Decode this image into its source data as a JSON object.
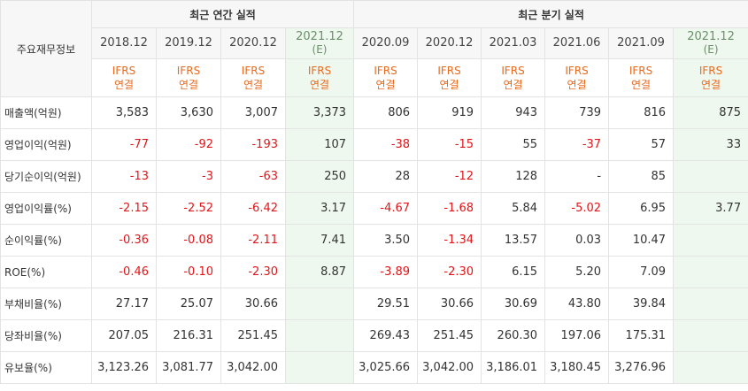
{
  "headers": {
    "row_title": "주요재무정보",
    "annual_group": "최근 연간 실적",
    "quarter_group": "최근 분기 실적"
  },
  "periods": [
    {
      "label": "2018.12",
      "est": "",
      "ifrs": "IFRS",
      "basis": "연결"
    },
    {
      "label": "2019.12",
      "est": "",
      "ifrs": "IFRS",
      "basis": "연결"
    },
    {
      "label": "2020.12",
      "est": "",
      "ifrs": "IFRS",
      "basis": "연결"
    },
    {
      "label": "2021.12",
      "est": "(E)",
      "ifrs": "IFRS",
      "basis": "연결"
    },
    {
      "label": "2020.09",
      "est": "",
      "ifrs": "IFRS",
      "basis": "연결"
    },
    {
      "label": "2020.12",
      "est": "",
      "ifrs": "IFRS",
      "basis": "연결"
    },
    {
      "label": "2021.03",
      "est": "",
      "ifrs": "IFRS",
      "basis": "연결"
    },
    {
      "label": "2021.06",
      "est": "",
      "ifrs": "IFRS",
      "basis": "연결"
    },
    {
      "label": "2021.09",
      "est": "",
      "ifrs": "IFRS",
      "basis": "연결"
    },
    {
      "label": "2021.12",
      "est": "(E)",
      "ifrs": "IFRS",
      "basis": "연결"
    }
  ],
  "rows": [
    {
      "label": "매출액(억원)",
      "values": [
        "3,583",
        "3,630",
        "3,007",
        "3,373",
        "806",
        "919",
        "943",
        "739",
        "816",
        "875"
      ]
    },
    {
      "label": "영업이익(억원)",
      "values": [
        "-77",
        "-92",
        "-193",
        "107",
        "-38",
        "-15",
        "55",
        "-37",
        "57",
        "33"
      ]
    },
    {
      "label": "당기순이익(억원)",
      "values": [
        "-13",
        "-3",
        "-63",
        "250",
        "28",
        "-12",
        "128",
        "-",
        "85",
        ""
      ]
    },
    {
      "label": "영업이익률(%)",
      "values": [
        "-2.15",
        "-2.52",
        "-6.42",
        "3.17",
        "-4.67",
        "-1.68",
        "5.84",
        "-5.02",
        "6.95",
        "3.77"
      ]
    },
    {
      "label": "순이익률(%)",
      "values": [
        "-0.36",
        "-0.08",
        "-2.11",
        "7.41",
        "3.50",
        "-1.34",
        "13.57",
        "0.03",
        "10.47",
        ""
      ]
    },
    {
      "label": "ROE(%)",
      "values": [
        "-0.46",
        "-0.10",
        "-2.30",
        "8.87",
        "-3.89",
        "-2.30",
        "6.15",
        "5.20",
        "7.09",
        ""
      ]
    },
    {
      "label": "부채비율(%)",
      "values": [
        "27.17",
        "25.07",
        "30.66",
        "",
        "29.51",
        "30.66",
        "30.69",
        "43.80",
        "39.84",
        ""
      ]
    },
    {
      "label": "당좌비율(%)",
      "values": [
        "207.05",
        "216.31",
        "251.45",
        "",
        "269.43",
        "251.45",
        "260.30",
        "197.06",
        "175.31",
        ""
      ]
    },
    {
      "label": "유보율(%)",
      "values": [
        "3,123.26",
        "3,081.77",
        "3,042.00",
        "",
        "3,025.66",
        "3,042.00",
        "3,186.01",
        "3,180.45",
        "3,276.96",
        ""
      ]
    }
  ],
  "colors": {
    "negative": "#e0161a",
    "ifrs": "#e86a1f",
    "estimate_bg": "#eef8ee"
  }
}
